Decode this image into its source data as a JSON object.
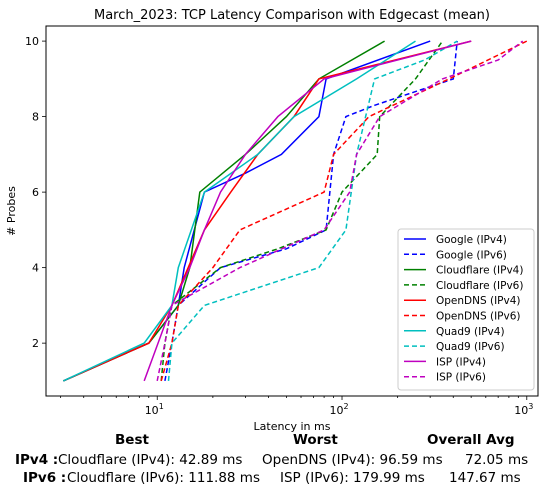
{
  "chart_data": {
    "type": "line",
    "title": "March_2023: TCP Latency Comparison with Edgecast (mean)",
    "xlabel": "Latency in ms",
    "ylabel": "# Probes",
    "xscale": "log",
    "xlim": [
      2.5,
      1150
    ],
    "ylim": [
      0.6,
      10.4
    ],
    "x_ticks": [
      {
        "value": 10,
        "label": "10",
        "sup": "1"
      },
      {
        "value": 100,
        "label": "10",
        "sup": "2"
      },
      {
        "value": 1000,
        "label": "10",
        "sup": "3"
      }
    ],
    "y_ticks": [
      2,
      4,
      6,
      8,
      10
    ],
    "legend_position": "lower-right",
    "grid": false,
    "series": [
      {
        "name": "Google (IPv4)",
        "color": "#0000ff",
        "dash": "solid",
        "points": [
          [
            3.1,
            1
          ],
          [
            9,
            2
          ],
          [
            13,
            3
          ],
          [
            14,
            4
          ],
          [
            18,
            6
          ],
          [
            30,
            6.5
          ],
          [
            47,
            7
          ],
          [
            75,
            8
          ],
          [
            82,
            9
          ],
          [
            300,
            10
          ]
        ]
      },
      {
        "name": "Google (IPv6)",
        "color": "#0000ff",
        "dash": "dashed",
        "points": [
          [
            11,
            1
          ],
          [
            12,
            2
          ],
          [
            13,
            3
          ],
          [
            22,
            4
          ],
          [
            50,
            4.5
          ],
          [
            82,
            5
          ],
          [
            90,
            7
          ],
          [
            105,
            8
          ],
          [
            150,
            8.3
          ],
          [
            400,
            9
          ],
          [
            420,
            10
          ]
        ]
      },
      {
        "name": "Cloudflare (IPv4)",
        "color": "#008000",
        "dash": "solid",
        "points": [
          [
            3.1,
            1
          ],
          [
            9,
            2
          ],
          [
            13,
            3
          ],
          [
            15,
            4
          ],
          [
            17,
            6
          ],
          [
            30,
            7
          ],
          [
            50,
            8
          ],
          [
            75,
            9
          ],
          [
            170,
            10
          ]
        ]
      },
      {
        "name": "Cloudflare (IPv6)",
        "color": "#008000",
        "dash": "dashed",
        "points": [
          [
            10.5,
            1
          ],
          [
            11,
            2
          ],
          [
            12,
            3
          ],
          [
            22,
            4
          ],
          [
            45,
            4.5
          ],
          [
            82,
            5
          ],
          [
            100,
            6
          ],
          [
            155,
            7
          ],
          [
            160,
            8
          ],
          [
            250,
            9
          ],
          [
            350,
            10
          ]
        ]
      },
      {
        "name": "OpenDNS (IPv4)",
        "color": "#ff0000",
        "dash": "solid",
        "points": [
          [
            3.1,
            1
          ],
          [
            9,
            2
          ],
          [
            12,
            3
          ],
          [
            18,
            5
          ],
          [
            25,
            6
          ],
          [
            35,
            7
          ],
          [
            55,
            8
          ],
          [
            75,
            9
          ],
          [
            500,
            10
          ]
        ]
      },
      {
        "name": "OpenDNS (IPv6)",
        "color": "#ff0000",
        "dash": "dashed",
        "points": [
          [
            10.5,
            1
          ],
          [
            12,
            2
          ],
          [
            13,
            3
          ],
          [
            20,
            4
          ],
          [
            28,
            5
          ],
          [
            80,
            6
          ],
          [
            90,
            7
          ],
          [
            140,
            8
          ],
          [
            380,
            9
          ],
          [
            1000,
            10
          ]
        ]
      },
      {
        "name": "Quad9 (IPv4)",
        "color": "#00bfbf",
        "dash": "solid",
        "points": [
          [
            3.1,
            1
          ],
          [
            8.5,
            2
          ],
          [
            12,
            3
          ],
          [
            13,
            4
          ],
          [
            18,
            6
          ],
          [
            35,
            7
          ],
          [
            55,
            8
          ],
          [
            120,
            9
          ],
          [
            250,
            10
          ]
        ]
      },
      {
        "name": "Quad9 (IPv6)",
        "color": "#00bfbf",
        "dash": "dashed",
        "points": [
          [
            11.5,
            1
          ],
          [
            12,
            2
          ],
          [
            18,
            3
          ],
          [
            75,
            4
          ],
          [
            105,
            5
          ],
          [
            120,
            7
          ],
          [
            150,
            9
          ],
          [
            280,
            9.5
          ],
          [
            420,
            10
          ]
        ]
      },
      {
        "name": "ISP (IPv4)",
        "color": "#bf00bf",
        "dash": "solid",
        "points": [
          [
            8.5,
            1
          ],
          [
            12,
            3
          ],
          [
            15,
            4
          ],
          [
            18,
            5
          ],
          [
            22,
            6
          ],
          [
            30,
            7
          ],
          [
            45,
            8
          ],
          [
            80,
            9
          ],
          [
            500,
            10
          ]
        ]
      },
      {
        "name": "ISP (IPv6)",
        "color": "#bf00bf",
        "dash": "dashed",
        "points": [
          [
            10,
            1
          ],
          [
            11,
            2
          ],
          [
            12,
            3
          ],
          [
            28,
            4
          ],
          [
            80,
            5
          ],
          [
            110,
            6
          ],
          [
            120,
            7
          ],
          [
            160,
            8
          ],
          [
            350,
            9
          ],
          [
            700,
            9.5
          ],
          [
            950,
            10
          ]
        ]
      }
    ]
  },
  "summary": {
    "headers": {
      "best": "Best",
      "worst": "Worst",
      "overall": "Overall Avg"
    },
    "ipv4": {
      "label": "IPv4 :",
      "best": "Cloudflare (IPv4): 42.89 ms",
      "worst": "OpenDNS (IPv4): 96.59 ms",
      "overall": "72.05 ms"
    },
    "ipv6": {
      "label": "IPv6 :",
      "best": "Cloudflare (IPv6): 111.88 ms",
      "worst": "ISP (IPv6): 179.99 ms",
      "overall": "147.67 ms"
    }
  }
}
